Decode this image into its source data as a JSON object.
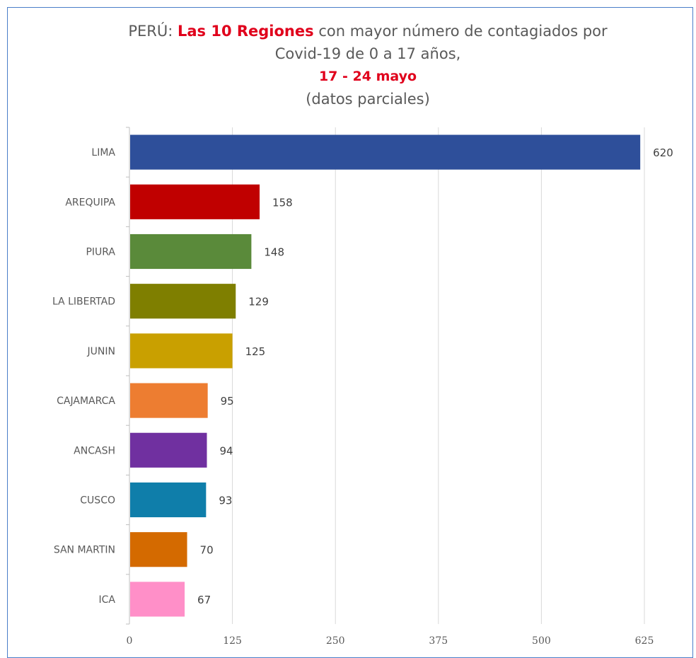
{
  "title": {
    "prefix": "PERÚ: ",
    "highlight": "Las 10 Regiones",
    "rest": " con mayor número de contagiados por",
    "line2": "Covid-19 de 0 a 17 años,",
    "date": "17 - 24 mayo",
    "note": "(datos parciales)"
  },
  "chart_data": {
    "type": "bar",
    "orientation": "horizontal",
    "title": "PERÚ: Las 10 Regiones con mayor número de contagiados por Covid-19 de 0 a 17 años, 17 - 24 mayo (datos parciales)",
    "categories": [
      "LIMA",
      "AREQUIPA",
      "PIURA",
      "LA LIBERTAD",
      "JUNIN",
      "CAJAMARCA",
      "ANCASH",
      "CUSCO",
      "SAN MARTIN",
      "ICA"
    ],
    "values": [
      620,
      158,
      148,
      129,
      125,
      95,
      94,
      93,
      70,
      67
    ],
    "colors": [
      "#2e4f9a",
      "#c00000",
      "#5a8a3a",
      "#7f7f00",
      "#c9a000",
      "#ed7d31",
      "#7030a0",
      "#0f7eaa",
      "#d46a00",
      "#ff8fc8"
    ],
    "xlim": [
      0,
      625
    ],
    "xticks": [
      0,
      125,
      250,
      375,
      500,
      625
    ],
    "xlabel": "",
    "ylabel": "",
    "grid": true,
    "legend": "none"
  }
}
